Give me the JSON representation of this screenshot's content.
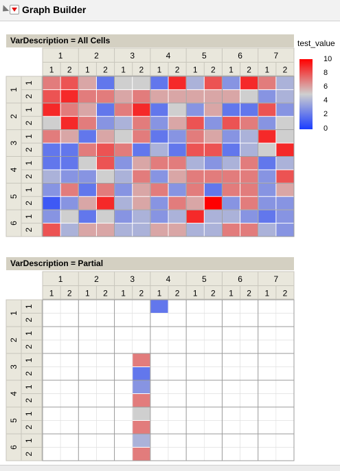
{
  "app": {
    "title": "Graph Builder"
  },
  "legend": {
    "title": "test_value",
    "ticks": [
      "10",
      "8",
      "6",
      "4",
      "2",
      "0"
    ],
    "min": 0,
    "max": 10
  },
  "x_outer_labels": [
    "1",
    "2",
    "3",
    "4",
    "5",
    "6",
    "7"
  ],
  "x_inner_labels": [
    "1",
    "2"
  ],
  "y_outer_labels": [
    "1",
    "2",
    "3",
    "4",
    "5",
    "6"
  ],
  "y_inner_labels": [
    "1",
    "2"
  ],
  "panels": [
    {
      "header": "VarDescription = All Cells",
      "cells": [
        [
          7,
          8,
          6,
          2,
          5,
          5,
          2,
          9,
          4,
          8,
          3,
          9,
          7,
          4
        ],
        [
          8,
          9,
          7,
          7,
          6,
          7,
          6,
          6,
          6,
          6,
          6,
          5,
          3,
          4
        ],
        [
          9,
          7,
          6,
          2,
          7,
          9,
          2,
          5,
          3,
          6,
          2,
          2,
          8,
          3
        ],
        [
          5,
          9,
          7,
          3,
          4,
          7,
          3,
          6,
          8,
          3,
          8,
          7,
          3,
          5
        ],
        [
          7,
          6,
          2,
          6,
          5,
          7,
          2,
          3,
          7,
          6,
          3,
          4,
          9,
          5
        ],
        [
          2,
          2,
          7,
          8,
          7,
          2,
          4,
          2,
          8,
          8,
          2,
          4,
          5,
          9
        ],
        [
          2,
          2,
          5,
          8,
          3,
          6,
          7,
          7,
          4,
          3,
          4,
          7,
          2,
          4
        ],
        [
          4,
          3,
          3,
          5,
          4,
          7,
          3,
          6,
          7,
          7,
          7,
          7,
          3,
          8
        ],
        [
          3,
          7,
          2,
          7,
          3,
          6,
          7,
          3,
          7,
          2,
          7,
          7,
          3,
          6
        ],
        [
          1,
          3,
          6,
          9,
          4,
          6,
          3,
          7,
          6,
          10,
          3,
          7,
          3,
          3
        ],
        [
          3,
          5,
          2,
          5,
          3,
          4,
          3,
          4,
          9,
          4,
          4,
          3,
          2,
          3
        ],
        [
          8,
          4,
          6,
          6,
          4,
          4,
          6,
          6,
          4,
          4,
          7,
          7,
          4,
          3
        ]
      ]
    },
    {
      "header": "VarDescription = Partial",
      "cells": [
        [
          null,
          null,
          null,
          null,
          null,
          null,
          2,
          null,
          null,
          null,
          null,
          null,
          null,
          null
        ],
        [
          null,
          null,
          null,
          null,
          null,
          null,
          null,
          null,
          null,
          null,
          null,
          null,
          null,
          null
        ],
        [
          null,
          null,
          null,
          null,
          null,
          null,
          null,
          null,
          null,
          null,
          null,
          null,
          null,
          null
        ],
        [
          null,
          null,
          null,
          null,
          null,
          null,
          null,
          null,
          null,
          null,
          null,
          null,
          null,
          null
        ],
        [
          null,
          null,
          null,
          null,
          null,
          7,
          null,
          null,
          null,
          null,
          null,
          null,
          null,
          null
        ],
        [
          null,
          null,
          null,
          null,
          null,
          2,
          null,
          null,
          null,
          null,
          null,
          null,
          null,
          null
        ],
        [
          null,
          null,
          null,
          null,
          null,
          3,
          null,
          null,
          null,
          null,
          null,
          null,
          null,
          null
        ],
        [
          null,
          null,
          null,
          null,
          null,
          7,
          null,
          null,
          null,
          null,
          null,
          null,
          null,
          null
        ],
        [
          null,
          null,
          null,
          null,
          null,
          5,
          null,
          null,
          null,
          null,
          null,
          null,
          null,
          null
        ],
        [
          null,
          null,
          null,
          null,
          null,
          7,
          null,
          null,
          null,
          null,
          null,
          null,
          null,
          null
        ],
        [
          null,
          null,
          null,
          null,
          null,
          4,
          null,
          null,
          null,
          null,
          null,
          null,
          null,
          null
        ],
        [
          null,
          null,
          null,
          null,
          null,
          7,
          null,
          null,
          null,
          null,
          null,
          null,
          null,
          null
        ]
      ]
    }
  ]
}
